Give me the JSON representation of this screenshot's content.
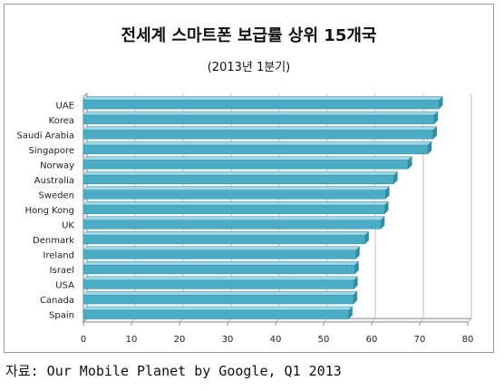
{
  "chart_data": {
    "type": "bar",
    "orientation": "horizontal",
    "title": "전세계 스마트폰 보급률 상위 15개국",
    "subtitle": "(2013년 1분기)",
    "categories": [
      "UAE",
      "Korea",
      "Saudi Arabia",
      "Singapore",
      "Norway",
      "Australia",
      "Sweden",
      "Hong Kong",
      "UK",
      "Denmark",
      "Ireland",
      "Israel",
      "USA",
      "Canada",
      "Spain"
    ],
    "values": [
      74,
      73,
      72.8,
      71.7,
      67.6,
      64.6,
      62.9,
      62.7,
      61.9,
      58.6,
      56.7,
      56.5,
      56.3,
      56.2,
      55.2
    ],
    "xlim": [
      0,
      80
    ],
    "xticks": [
      0,
      10,
      20,
      30,
      40,
      50,
      60,
      70,
      80
    ],
    "xlabel": "",
    "ylabel": "",
    "grid": true,
    "legend": "none",
    "bar_color": "#4bacc6"
  },
  "source_note": "자료: Our Mobile Planet by Google, Q1 2013"
}
